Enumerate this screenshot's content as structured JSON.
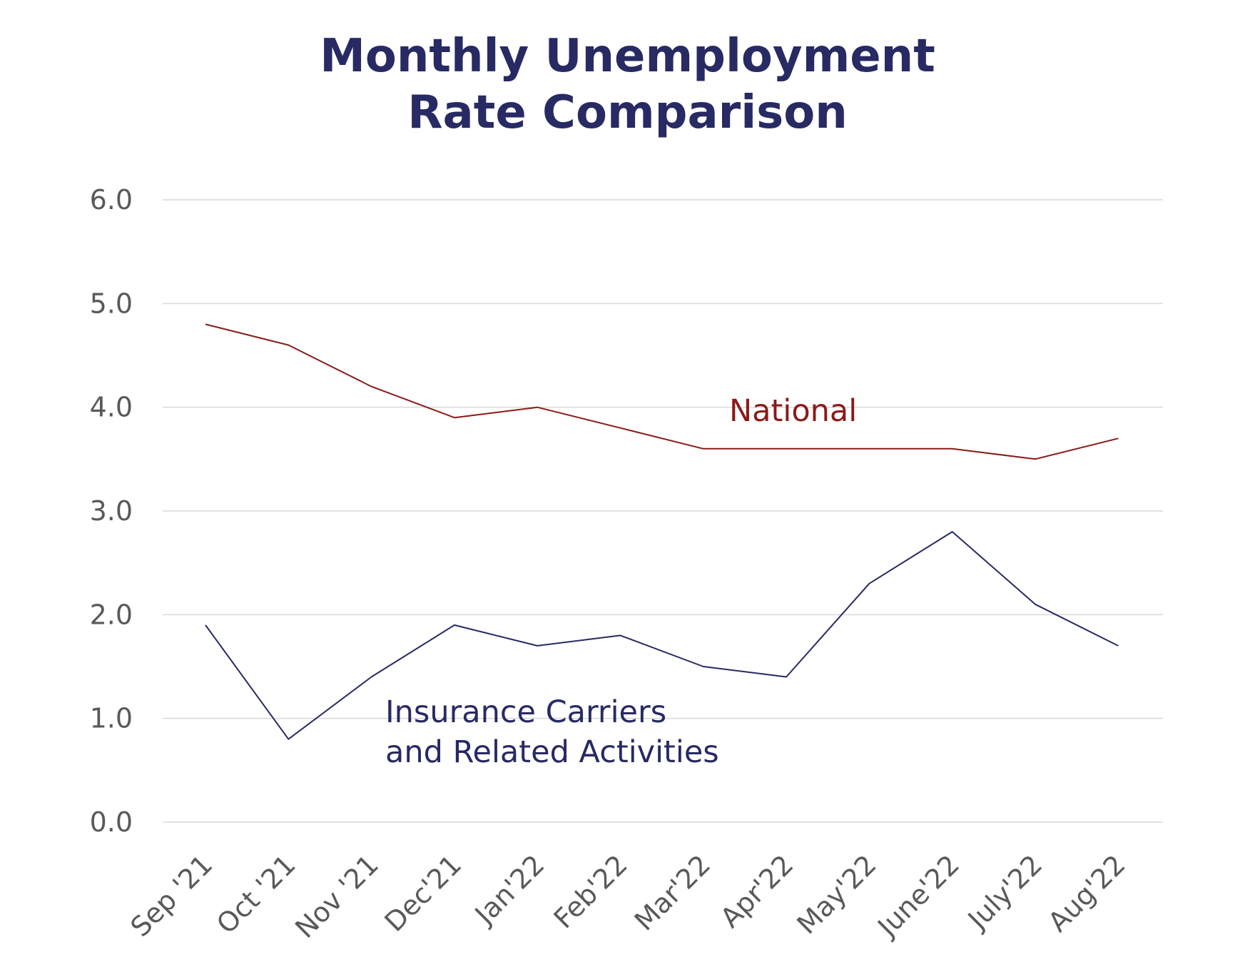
{
  "chart_data": {
    "type": "line",
    "title_lines": [
      "Monthly Unemployment",
      "Rate Comparison"
    ],
    "categories": [
      "Sep '21",
      "Oct '21",
      "Nov '21",
      "Dec'21",
      "Jan'22",
      "Feb'22",
      "Mar'22",
      "Apr'22",
      "May'22",
      "June'22",
      "July'22",
      "Aug'22"
    ],
    "y_ticks": [
      "0.0",
      "1.0",
      "2.0",
      "3.0",
      "4.0",
      "5.0",
      "6.0"
    ],
    "ylim": [
      0,
      6
    ],
    "grid": "horizontal",
    "xlabel": "",
    "ylabel": "",
    "series": [
      {
        "name": "National",
        "label_lines": [
          "National"
        ],
        "color": "#8b1a1a",
        "values": [
          4.8,
          4.6,
          4.2,
          3.9,
          4.0,
          3.8,
          3.6,
          3.6,
          3.6,
          3.6,
          3.5,
          3.7
        ]
      },
      {
        "name": "Insurance Carriers and Related Activities",
        "label_lines": [
          "Insurance Carriers",
          "and Related Activities"
        ],
        "color": "#272a63",
        "values": [
          1.9,
          0.8,
          1.4,
          1.9,
          1.7,
          1.8,
          1.5,
          1.4,
          2.3,
          2.8,
          2.1,
          1.7
        ]
      }
    ]
  }
}
